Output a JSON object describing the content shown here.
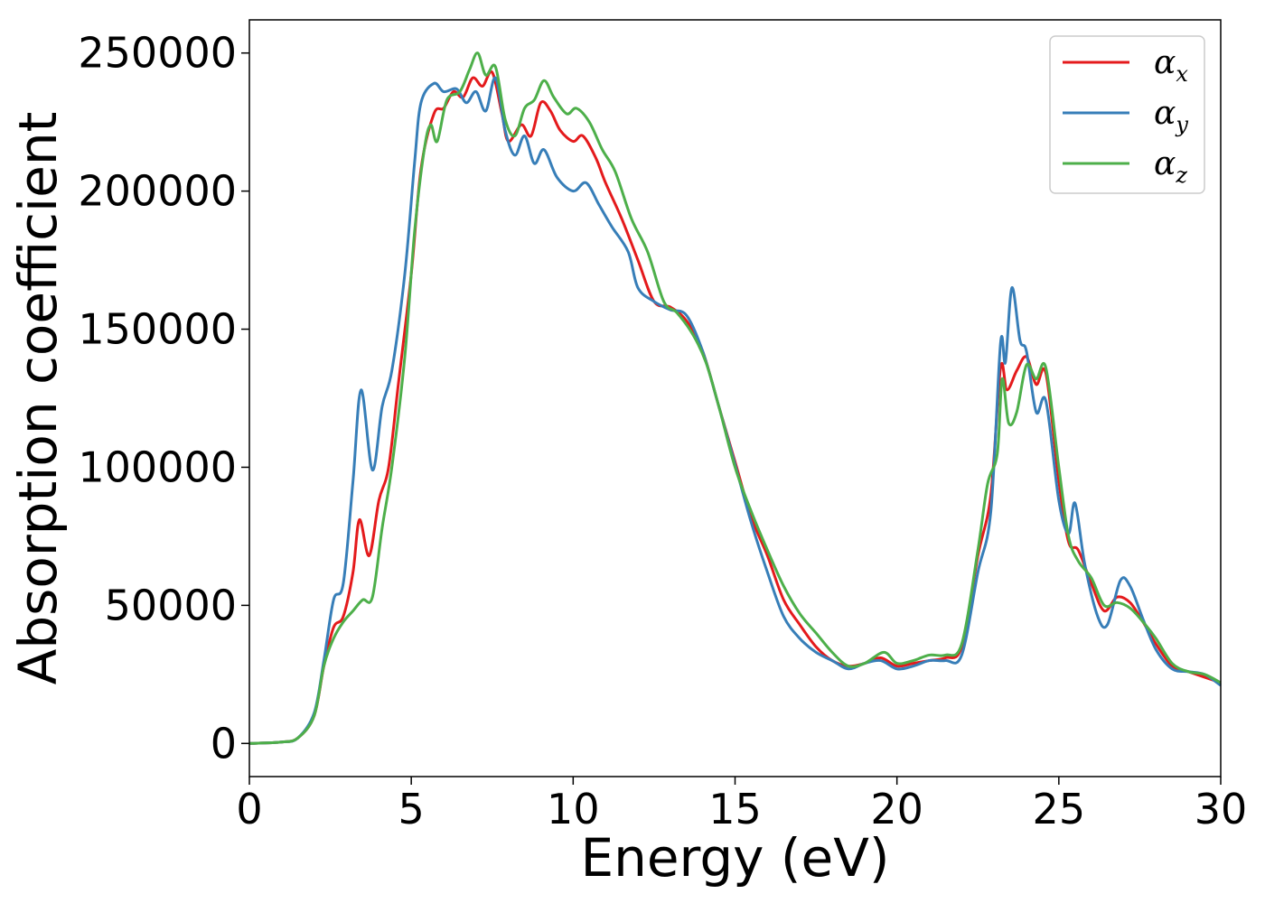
{
  "chart_data": {
    "type": "line",
    "title": "",
    "xlabel": "Energy (eV)",
    "ylabel": "Absorption coefficient",
    "xlim": [
      0,
      30
    ],
    "ylim": [
      -12000,
      262000
    ],
    "xticks": [
      0,
      5,
      10,
      15,
      20,
      25,
      30
    ],
    "xtick_labels": [
      "0",
      "5",
      "10",
      "15",
      "20",
      "25",
      "30"
    ],
    "yticks": [
      0,
      50000,
      100000,
      150000,
      200000,
      250000
    ],
    "ytick_labels": [
      "0",
      "50000",
      "100000",
      "150000",
      "200000",
      "250000"
    ],
    "grid": false,
    "legend_position": "top-right",
    "series": [
      {
        "name": "αx",
        "symbol": "α",
        "sub": "x",
        "color": "#e41a1c",
        "points": [
          [
            0,
            0
          ],
          [
            1,
            500
          ],
          [
            1.5,
            2000
          ],
          [
            2,
            10000
          ],
          [
            2.3,
            28000
          ],
          [
            2.6,
            42000
          ],
          [
            2.9,
            46000
          ],
          [
            3.2,
            62000
          ],
          [
            3.4,
            81000
          ],
          [
            3.7,
            68000
          ],
          [
            4.0,
            88000
          ],
          [
            4.3,
            100000
          ],
          [
            4.6,
            130000
          ],
          [
            5.0,
            170000
          ],
          [
            5.3,
            208000
          ],
          [
            5.7,
            228000
          ],
          [
            6.0,
            230000
          ],
          [
            6.3,
            236000
          ],
          [
            6.6,
            234000
          ],
          [
            6.9,
            241000
          ],
          [
            7.2,
            238000
          ],
          [
            7.5,
            243000
          ],
          [
            7.8,
            228000
          ],
          [
            8.0,
            218000
          ],
          [
            8.4,
            224000
          ],
          [
            8.7,
            220000
          ],
          [
            9.0,
            232000
          ],
          [
            9.3,
            229000
          ],
          [
            9.6,
            222000
          ],
          [
            10.0,
            218000
          ],
          [
            10.3,
            220000
          ],
          [
            10.7,
            212000
          ],
          [
            11.0,
            203000
          ],
          [
            11.5,
            190000
          ],
          [
            12.0,
            175000
          ],
          [
            12.5,
            160000
          ],
          [
            13.0,
            158000
          ],
          [
            13.5,
            153000
          ],
          [
            14.0,
            142000
          ],
          [
            14.5,
            122000
          ],
          [
            15.0,
            102000
          ],
          [
            15.5,
            82000
          ],
          [
            16.0,
            68000
          ],
          [
            16.5,
            52000
          ],
          [
            17.0,
            43000
          ],
          [
            17.5,
            35000
          ],
          [
            18.0,
            30000
          ],
          [
            18.5,
            28000
          ],
          [
            19.0,
            29000
          ],
          [
            19.5,
            31000
          ],
          [
            20.0,
            28000
          ],
          [
            20.5,
            29000
          ],
          [
            21.0,
            30000
          ],
          [
            21.5,
            31000
          ],
          [
            22.0,
            35000
          ],
          [
            22.5,
            68000
          ],
          [
            22.9,
            90000
          ],
          [
            23.2,
            136000
          ],
          [
            23.4,
            128000
          ],
          [
            23.7,
            135000
          ],
          [
            24.0,
            140000
          ],
          [
            24.3,
            130000
          ],
          [
            24.6,
            134000
          ],
          [
            25.0,
            95000
          ],
          [
            25.3,
            73000
          ],
          [
            25.6,
            70000
          ],
          [
            26.0,
            58000
          ],
          [
            26.4,
            48000
          ],
          [
            26.8,
            53000
          ],
          [
            27.2,
            51000
          ],
          [
            27.6,
            44000
          ],
          [
            28.0,
            36000
          ],
          [
            28.5,
            28000
          ],
          [
            29.0,
            26000
          ],
          [
            29.5,
            24000
          ],
          [
            30.0,
            22000
          ]
        ]
      },
      {
        "name": "αy",
        "symbol": "α",
        "sub": "y",
        "color": "#377eb8",
        "points": [
          [
            0,
            0
          ],
          [
            1,
            500
          ],
          [
            1.5,
            2000
          ],
          [
            2,
            11000
          ],
          [
            2.3,
            30000
          ],
          [
            2.6,
            52000
          ],
          [
            2.9,
            58000
          ],
          [
            3.2,
            95000
          ],
          [
            3.45,
            128000
          ],
          [
            3.8,
            99000
          ],
          [
            4.1,
            122000
          ],
          [
            4.4,
            135000
          ],
          [
            4.8,
            170000
          ],
          [
            5.1,
            210000
          ],
          [
            5.3,
            232000
          ],
          [
            5.7,
            239000
          ],
          [
            6.0,
            236000
          ],
          [
            6.4,
            237000
          ],
          [
            6.7,
            232000
          ],
          [
            7.0,
            236000
          ],
          [
            7.3,
            229000
          ],
          [
            7.6,
            241000
          ],
          [
            7.9,
            222000
          ],
          [
            8.2,
            213000
          ],
          [
            8.5,
            220000
          ],
          [
            8.8,
            210000
          ],
          [
            9.1,
            215000
          ],
          [
            9.5,
            205000
          ],
          [
            10.0,
            200000
          ],
          [
            10.4,
            203000
          ],
          [
            10.8,
            195000
          ],
          [
            11.2,
            187000
          ],
          [
            11.7,
            178000
          ],
          [
            12.0,
            165000
          ],
          [
            12.5,
            160000
          ],
          [
            13.0,
            157000
          ],
          [
            13.5,
            155000
          ],
          [
            14.0,
            142000
          ],
          [
            14.5,
            122000
          ],
          [
            15.0,
            101000
          ],
          [
            15.5,
            80000
          ],
          [
            16.0,
            62000
          ],
          [
            16.5,
            46000
          ],
          [
            17.0,
            38000
          ],
          [
            17.5,
            33000
          ],
          [
            18.0,
            30000
          ],
          [
            18.5,
            27000
          ],
          [
            19.0,
            29000
          ],
          [
            19.5,
            30000
          ],
          [
            20.0,
            27000
          ],
          [
            20.5,
            28000
          ],
          [
            21.0,
            30000
          ],
          [
            21.5,
            30000
          ],
          [
            22.0,
            32000
          ],
          [
            22.5,
            62000
          ],
          [
            22.9,
            84000
          ],
          [
            23.2,
            145000
          ],
          [
            23.35,
            138000
          ],
          [
            23.55,
            165000
          ],
          [
            23.8,
            146000
          ],
          [
            24.0,
            142000
          ],
          [
            24.3,
            120000
          ],
          [
            24.6,
            124000
          ],
          [
            25.0,
            88000
          ],
          [
            25.3,
            76000
          ],
          [
            25.5,
            87000
          ],
          [
            25.8,
            65000
          ],
          [
            26.2,
            46000
          ],
          [
            26.5,
            43000
          ],
          [
            26.9,
            59000
          ],
          [
            27.2,
            57000
          ],
          [
            27.6,
            45000
          ],
          [
            28.0,
            34000
          ],
          [
            28.5,
            27000
          ],
          [
            29.0,
            26000
          ],
          [
            29.5,
            25000
          ],
          [
            30.0,
            21000
          ]
        ]
      },
      {
        "name": "αz",
        "symbol": "α",
        "sub": "z",
        "color": "#4daf4a",
        "points": [
          [
            0,
            0
          ],
          [
            1,
            500
          ],
          [
            1.5,
            2000
          ],
          [
            2,
            10000
          ],
          [
            2.3,
            28000
          ],
          [
            2.6,
            38000
          ],
          [
            2.9,
            44000
          ],
          [
            3.2,
            48000
          ],
          [
            3.5,
            52000
          ],
          [
            3.8,
            53000
          ],
          [
            4.1,
            78000
          ],
          [
            4.4,
            100000
          ],
          [
            4.8,
            140000
          ],
          [
            5.1,
            185000
          ],
          [
            5.4,
            215000
          ],
          [
            5.6,
            224000
          ],
          [
            5.8,
            218000
          ],
          [
            6.1,
            233000
          ],
          [
            6.5,
            236000
          ],
          [
            6.8,
            244000
          ],
          [
            7.05,
            250000
          ],
          [
            7.3,
            242000
          ],
          [
            7.6,
            245000
          ],
          [
            7.9,
            226000
          ],
          [
            8.2,
            220000
          ],
          [
            8.5,
            230000
          ],
          [
            8.8,
            233000
          ],
          [
            9.1,
            240000
          ],
          [
            9.4,
            234000
          ],
          [
            9.8,
            228000
          ],
          [
            10.1,
            230000
          ],
          [
            10.5,
            225000
          ],
          [
            10.9,
            215000
          ],
          [
            11.3,
            207000
          ],
          [
            11.8,
            190000
          ],
          [
            12.3,
            178000
          ],
          [
            12.8,
            160000
          ],
          [
            13.2,
            156000
          ],
          [
            13.7,
            148000
          ],
          [
            14.1,
            138000
          ],
          [
            14.5,
            122000
          ],
          [
            15.0,
            100000
          ],
          [
            15.5,
            84000
          ],
          [
            16.0,
            70000
          ],
          [
            16.5,
            57000
          ],
          [
            17.0,
            47000
          ],
          [
            17.5,
            40000
          ],
          [
            18.0,
            33000
          ],
          [
            18.5,
            28000
          ],
          [
            19.0,
            29000
          ],
          [
            19.6,
            33000
          ],
          [
            20.0,
            29000
          ],
          [
            20.5,
            30000
          ],
          [
            21.0,
            32000
          ],
          [
            21.5,
            32000
          ],
          [
            22.0,
            36000
          ],
          [
            22.5,
            70000
          ],
          [
            22.8,
            94000
          ],
          [
            23.1,
            105000
          ],
          [
            23.25,
            132000
          ],
          [
            23.45,
            116000
          ],
          [
            23.7,
            120000
          ],
          [
            24.0,
            137000
          ],
          [
            24.3,
            132000
          ],
          [
            24.6,
            136000
          ],
          [
            25.0,
            100000
          ],
          [
            25.3,
            75000
          ],
          [
            25.6,
            66000
          ],
          [
            26.0,
            60000
          ],
          [
            26.4,
            50000
          ],
          [
            26.8,
            51000
          ],
          [
            27.2,
            49000
          ],
          [
            27.6,
            44000
          ],
          [
            28.0,
            38000
          ],
          [
            28.5,
            29000
          ],
          [
            29.0,
            26000
          ],
          [
            29.5,
            25000
          ],
          [
            30.0,
            22000
          ]
        ]
      }
    ]
  }
}
